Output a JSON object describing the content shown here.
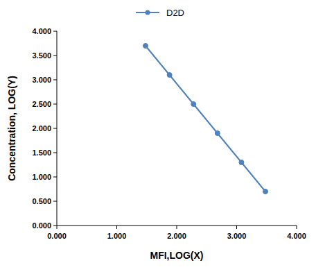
{
  "chart_data": {
    "type": "line",
    "x_label": "MFI,LOG(X)",
    "y_label": "Concentration,  LOG(Y)",
    "x": [
      1.48,
      1.88,
      2.28,
      2.68,
      3.08,
      3.48
    ],
    "series": [
      {
        "name": "D2D",
        "color": "#4f81bd",
        "marker": "circle",
        "line_style": "solid",
        "values": [
          3.7,
          3.1,
          2.5,
          1.9,
          1.3,
          0.7
        ]
      }
    ],
    "xlim": [
      0,
      4
    ],
    "ylim": [
      0,
      4
    ],
    "xticks": [
      {
        "value": 0,
        "label": "0.000"
      },
      {
        "value": 1,
        "label": "1.000"
      },
      {
        "value": 2,
        "label": "2.000"
      },
      {
        "value": 3,
        "label": "3.000"
      },
      {
        "value": 4,
        "label": "4.000"
      }
    ],
    "yticks": [
      {
        "value": 0,
        "label": "0.000"
      },
      {
        "value": 0.5,
        "label": "0.500"
      },
      {
        "value": 1,
        "label": "1.000"
      },
      {
        "value": 1.5,
        "label": "1.500"
      },
      {
        "value": 2,
        "label": "2.000"
      },
      {
        "value": 2.5,
        "label": "2.500"
      },
      {
        "value": 3,
        "label": "3.000"
      },
      {
        "value": 3.5,
        "label": "3.500"
      },
      {
        "value": 4,
        "label": "4.000"
      }
    ],
    "grid": false,
    "legend": "top"
  }
}
